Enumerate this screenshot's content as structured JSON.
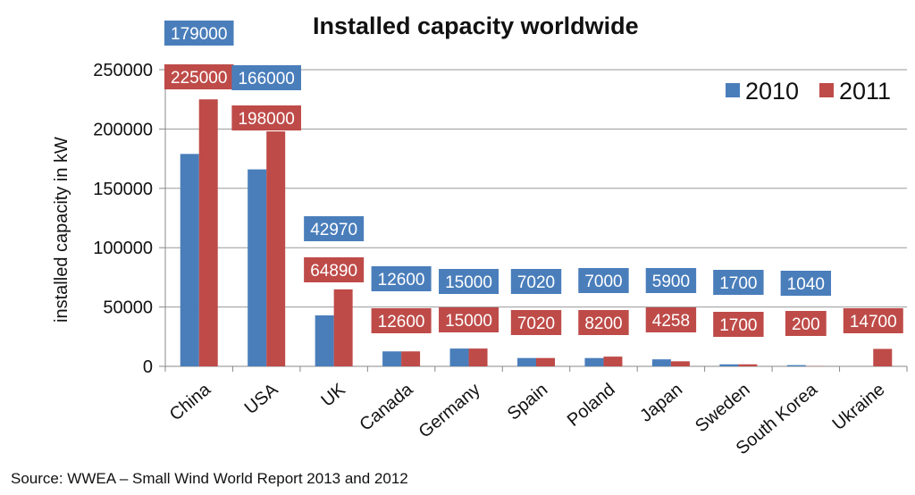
{
  "chart_data": {
    "type": "bar",
    "title": "Installed capacity worldwide",
    "xlabel": "",
    "ylabel": "installed capacity in kW",
    "ylim": [
      0,
      250000
    ],
    "yticks": [
      0,
      50000,
      100000,
      150000,
      200000,
      250000
    ],
    "grid": true,
    "legend_position": "top-right",
    "categories": [
      "China",
      "USA",
      "UK",
      "Canada",
      "Germany",
      "Spain",
      "Poland",
      "Japan",
      "Sweden",
      "South Korea",
      "Ukraine"
    ],
    "series": [
      {
        "name": "2010",
        "color": "#4a7ebb",
        "values": [
          179000,
          166000,
          42970,
          12600,
          15000,
          7020,
          7000,
          5900,
          1700,
          1040,
          0
        ],
        "labels": [
          "179000",
          "166000",
          "42970",
          "12600",
          "15000",
          "7020",
          "7000",
          "5900",
          "1700",
          "1040",
          null
        ]
      },
      {
        "name": "2011",
        "color": "#be4b48",
        "values": [
          225000,
          198000,
          64890,
          12600,
          15000,
          7020,
          8200,
          4258,
          1700,
          200,
          14700
        ],
        "labels": [
          "225000",
          "198000",
          "64890",
          "12600",
          "15000",
          "7020",
          "8200",
          "4258",
          "1700",
          "200",
          "14700"
        ]
      }
    ],
    "source": "Source: WWEA – Small Wind World Report 2013 and 2012"
  }
}
